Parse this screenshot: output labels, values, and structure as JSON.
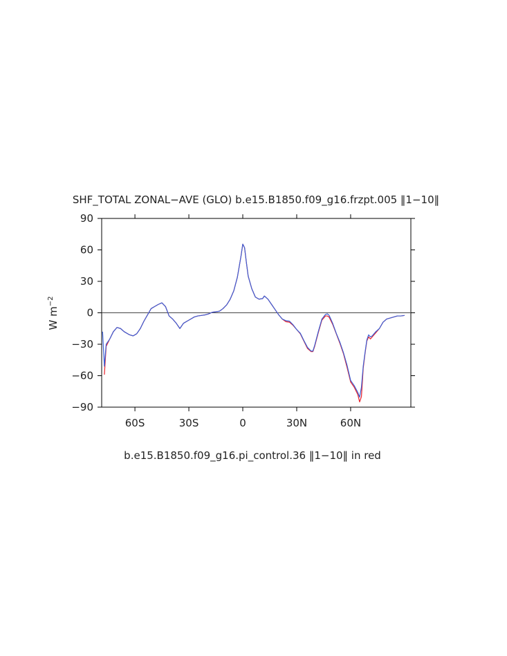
{
  "chart_data": {
    "type": "line",
    "title": "SHF_TOTAL ZONAL−AVE (GLO) b.e15.B1850.f09_g16.frzpt.005 ‖1−10‖",
    "xlabel": "b.e15.B1850.f09_g16.pi_control.36 ‖1−10‖ in red",
    "ylabel": [
      "W m",
      "−2"
    ],
    "xlim": [
      -78.5,
      93.5
    ],
    "ylim": [
      -90,
      90
    ],
    "xticks": [
      {
        "value": -60,
        "label": "60S"
      },
      {
        "value": -30,
        "label": "30S"
      },
      0,
      {
        "value": 30,
        "label": "30N"
      },
      {
        "value": 60,
        "label": "60N"
      }
    ],
    "yticks": [
      {
        "value": -90,
        "label": "−90"
      },
      {
        "value": -60,
        "label": "−60"
      },
      {
        "value": -30,
        "label": "−30"
      },
      0,
      30,
      60,
      90
    ],
    "hline": 0,
    "x": [
      -78,
      -77,
      -76,
      -74,
      -72,
      -70,
      -68,
      -66,
      -63,
      -61,
      -59,
      -57,
      -55,
      -53,
      -51,
      -49,
      -47,
      -45,
      -43,
      -41,
      -39,
      -37,
      -35,
      -33,
      -31,
      -29,
      -27,
      -25,
      -23,
      -21,
      -19,
      -17,
      -15,
      -13,
      -11,
      -9,
      -7,
      -5,
      -3,
      -1,
      0,
      1,
      2,
      3,
      5,
      7,
      9,
      11,
      12,
      14,
      16,
      18,
      20,
      22,
      24,
      26,
      28,
      30,
      32,
      34,
      36,
      38,
      39,
      40,
      42,
      44,
      46,
      47,
      48,
      50,
      52,
      54,
      56,
      58,
      60,
      62,
      64,
      65,
      66,
      67,
      68,
      69,
      70,
      71,
      72,
      74,
      76,
      78,
      80,
      82,
      84,
      86,
      88,
      90
    ],
    "series": [
      {
        "color": "#e8202a",
        "values": [
          null,
          -59,
          -32,
          -25,
          -18,
          -14,
          -15,
          -18,
          -21,
          -22,
          -20,
          -15,
          -8,
          -2,
          4,
          6,
          8,
          9.5,
          6,
          -3,
          -6,
          -10,
          -15,
          -10,
          -8,
          -6,
          -4,
          -3,
          -2.5,
          -2,
          -1,
          0.5,
          1,
          1.5,
          4,
          7.5,
          13,
          21,
          34,
          54,
          65.5,
          62,
          48,
          35,
          23,
          15,
          13,
          13.5,
          16,
          13,
          8,
          3,
          -2,
          -6,
          -8.5,
          -9,
          -12,
          -16,
          -20,
          -27,
          -34,
          -37,
          -37,
          -32,
          -19,
          -7,
          -3,
          -3,
          -4,
          -11,
          -20,
          -29,
          -39,
          -52,
          -66,
          -71,
          -78,
          -85,
          -80,
          -53,
          -39,
          -27,
          -23,
          -25,
          -23,
          -19,
          -15,
          -9,
          -6,
          -5,
          -4,
          -3,
          -3,
          -2.5
        ]
      },
      {
        "color": "#3a5fd6",
        "values": [
          -18,
          -51,
          -30,
          -25,
          -18,
          -14,
          -15,
          -18,
          -21,
          -22,
          -20,
          -15,
          -8,
          -2,
          4,
          6,
          8,
          9.5,
          6,
          -3,
          -6,
          -10,
          -15,
          -10,
          -8,
          -6,
          -4,
          -3,
          -2.5,
          -2,
          -1,
          0.5,
          1,
          1.5,
          4,
          7.5,
          13,
          21,
          34,
          54,
          65.5,
          62,
          48,
          35,
          23,
          15,
          13,
          13.5,
          16,
          13,
          8,
          3,
          -2,
          -6,
          -7.5,
          -8,
          -11.5,
          -16,
          -19.5,
          -26.5,
          -33,
          -36.5,
          -36.5,
          -31,
          -18,
          -6,
          -1.6,
          -1,
          -2.3,
          -10,
          -19.5,
          -28,
          -38,
          -50,
          -64.5,
          -69.5,
          -76,
          -80.5,
          -71,
          -51,
          -38,
          -26,
          -21,
          -23,
          -22,
          -18,
          -15,
          -9,
          -6,
          -5,
          -4,
          -3,
          -3,
          -2.5
        ]
      }
    ]
  }
}
